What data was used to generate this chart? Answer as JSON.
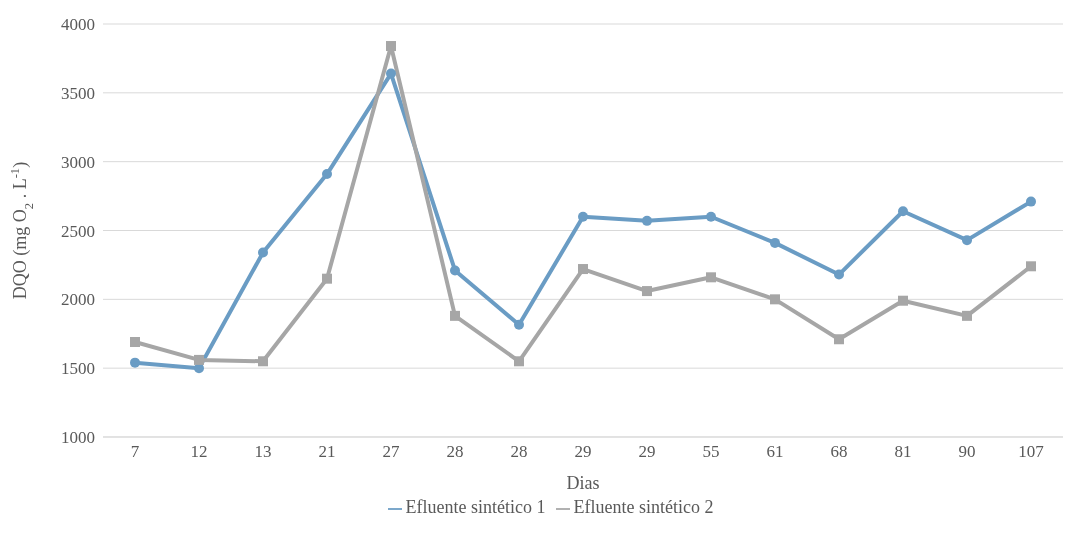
{
  "chart_data": {
    "type": "line",
    "xlabel": "Dias",
    "ylabel": "DQO (mg O$_{2}$ . L$^{-1}$)",
    "categories": [
      "7",
      "12",
      "13",
      "21",
      "27",
      "28",
      "28",
      "29",
      "29",
      "55",
      "61",
      "68",
      "81",
      "90",
      "107"
    ],
    "series": [
      {
        "name": "Efluente sintético 1",
        "color": "#6a9cc4",
        "marker": "circle",
        "values": [
          1540,
          1500,
          2340,
          2910,
          3640,
          2210,
          1815,
          2600,
          2570,
          2600,
          2410,
          2180,
          2640,
          2430,
          2710
        ]
      },
      {
        "name": "Efluente sintético 2",
        "color": "#a6a6a6",
        "marker": "square",
        "values": [
          1690,
          1560,
          1550,
          2150,
          3840,
          1880,
          1550,
          2220,
          2060,
          2160,
          2000,
          1710,
          1990,
          1880,
          2240
        ]
      }
    ],
    "ylim": [
      1000,
      4000
    ],
    "yticks": [
      1000,
      1500,
      2000,
      2500,
      3000,
      3500,
      4000
    ],
    "grid": "y",
    "legend": "bottom"
  }
}
